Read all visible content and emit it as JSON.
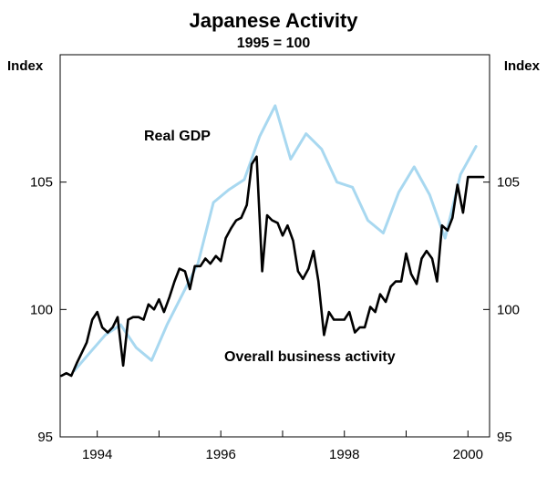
{
  "chart_data": {
    "type": "line",
    "title": "Japanese Activity",
    "subtitle": "1995 = 100",
    "ylabel_left": "Index",
    "ylabel_right": "Index",
    "xlim": [
      1993.4,
      2000.35
    ],
    "ylim": [
      95,
      110
    ],
    "yticks": [
      95,
      100,
      105
    ],
    "ytick_labels": [
      "95",
      "100",
      "105"
    ],
    "xticks": [
      1994,
      1996,
      1998,
      2000
    ],
    "xtick_labels": [
      "1994",
      "1996",
      "1998",
      "2000"
    ],
    "grid": false,
    "colors": {
      "real_gdp": "#a8d8f0",
      "business": "#000000",
      "axis": "#000000"
    },
    "series": [
      {
        "key": "real_gdp",
        "name": "Real GDP",
        "x": [
          1993.63,
          1993.88,
          1994.13,
          1994.38,
          1994.63,
          1994.88,
          1995.13,
          1995.38,
          1995.63,
          1995.88,
          1996.13,
          1996.38,
          1996.63,
          1996.88,
          1997.13,
          1997.38,
          1997.63,
          1997.88,
          1998.13,
          1998.38,
          1998.63,
          1998.88,
          1999.13,
          1999.38,
          1999.63,
          1999.88,
          2000.13
        ],
        "values": [
          97.6,
          98.3,
          99.0,
          99.4,
          98.5,
          98.0,
          99.4,
          100.6,
          101.8,
          104.2,
          104.7,
          105.1,
          106.8,
          108.0,
          105.9,
          106.9,
          106.3,
          105.0,
          104.8,
          103.5,
          103.0,
          104.6,
          105.6,
          104.5,
          102.8,
          105.3,
          106.4
        ]
      },
      {
        "key": "business",
        "name": "Overall business activity",
        "x": [
          1993.42,
          1993.5,
          1993.58,
          1993.67,
          1993.75,
          1993.83,
          1993.92,
          1994.0,
          1994.08,
          1994.17,
          1994.25,
          1994.33,
          1994.42,
          1994.5,
          1994.58,
          1994.67,
          1994.75,
          1994.83,
          1994.92,
          1995.0,
          1995.08,
          1995.17,
          1995.25,
          1995.33,
          1995.42,
          1995.5,
          1995.58,
          1995.67,
          1995.75,
          1995.83,
          1995.92,
          1996.0,
          1996.08,
          1996.17,
          1996.25,
          1996.33,
          1996.42,
          1996.5,
          1996.58,
          1996.67,
          1996.75,
          1996.83,
          1996.92,
          1997.0,
          1997.08,
          1997.17,
          1997.25,
          1997.33,
          1997.42,
          1997.5,
          1997.58,
          1997.67,
          1997.75,
          1997.83,
          1997.92,
          1998.0,
          1998.08,
          1998.17,
          1998.25,
          1998.33,
          1998.42,
          1998.5,
          1998.58,
          1998.67,
          1998.75,
          1998.83,
          1998.92,
          1999.0,
          1999.08,
          1999.17,
          1999.25,
          1999.33,
          1999.42,
          1999.5,
          1999.58,
          1999.67,
          1999.75,
          1999.83,
          1999.92,
          2000.0,
          2000.08,
          2000.17,
          2000.25
        ],
        "values": [
          97.4,
          97.5,
          97.4,
          97.9,
          98.3,
          98.7,
          99.6,
          99.9,
          99.3,
          99.1,
          99.3,
          99.7,
          97.8,
          99.6,
          99.7,
          99.7,
          99.6,
          100.2,
          100.0,
          100.4,
          99.9,
          100.5,
          101.1,
          101.6,
          101.5,
          100.8,
          101.7,
          101.7,
          102.0,
          101.8,
          102.1,
          101.9,
          102.8,
          103.2,
          103.5,
          103.6,
          104.1,
          105.7,
          106.0,
          101.5,
          103.7,
          103.5,
          103.4,
          102.9,
          103.3,
          102.7,
          101.5,
          101.2,
          101.6,
          102.3,
          101.1,
          99.0,
          99.9,
          99.6,
          99.6,
          99.6,
          99.9,
          99.1,
          99.3,
          99.3,
          100.1,
          99.9,
          100.6,
          100.3,
          100.9,
          101.1,
          101.1,
          102.2,
          101.4,
          101.0,
          102.0,
          102.3,
          102.0,
          101.1,
          103.3,
          103.1,
          103.6,
          104.9,
          103.8,
          105.2,
          105.2,
          105.2,
          105.2
        ]
      }
    ],
    "annotations": [
      {
        "series": "real_gdp",
        "text": "Real GDP"
      },
      {
        "series": "business",
        "text": "Overall business activity"
      }
    ]
  }
}
